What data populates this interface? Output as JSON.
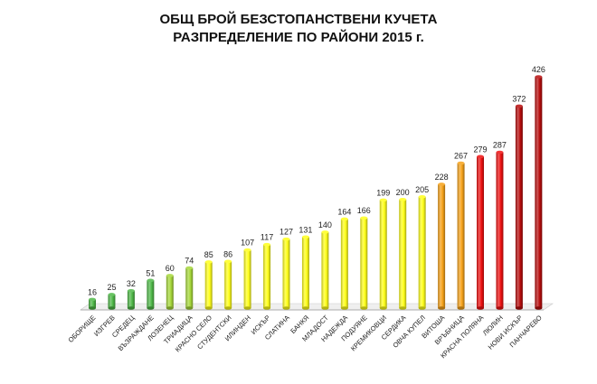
{
  "chart_data": {
    "type": "bar",
    "title": [
      "ОБЩ БРОЙ БЕЗСТОПАНСТВЕНИ  КУЧЕТА",
      "РАЗПРЕДЕЛЕНИЕ  ПО РАЙОНИ 2015 г."
    ],
    "xlabel": "",
    "ylabel": "",
    "ylim": [
      0,
      430
    ],
    "grid": false,
    "legend": "none",
    "categories": [
      "ОБОРИЩЕ",
      "ИЗГРЕВ",
      "СРЕДЕЦ",
      "ВЪЗРАЖДАНЕ",
      "ЛОЗЕНЕЦ",
      "ТРИАДИЦА",
      "КРАСНО СЕЛО",
      "СТУДЕНТСКИ",
      "ИЛИНДЕН",
      "ИСКЪР",
      "СЛАТИНА",
      "БАНКЯ",
      "МЛАДОСТ",
      "НАДЕЖДА",
      "ПОДУЯНЕ",
      "КРЕМИКОВЦИ",
      "СЕРДИКА",
      "ОВЧА КУПЕЛ",
      "ВИТОША",
      "ВРЪБНИЦА",
      "КРАСНА ПОЛЯНА",
      "ЛЮЛИН",
      "НОВИ ИСКЪР",
      "ПАНЧАРЕВО"
    ],
    "values": [
      16,
      25,
      32,
      51,
      60,
      74,
      85,
      86,
      107,
      117,
      127,
      131,
      140,
      164,
      166,
      199,
      200,
      205,
      228,
      267,
      279,
      287,
      372,
      426
    ],
    "colors": [
      "#4fb848",
      "#4fb848",
      "#4fb848",
      "#4fb848",
      "#a7d83a",
      "#a7d83a",
      "#ffff1a",
      "#ffff1a",
      "#ffff1a",
      "#ffff1a",
      "#ffff1a",
      "#ffff1a",
      "#ffff1a",
      "#ffff1a",
      "#ffff1a",
      "#ffff1a",
      "#ffff1a",
      "#ffff1a",
      "#f6a21a",
      "#f6a21a",
      "#ee1111",
      "#ee1111",
      "#b80d0d",
      "#b80d0d"
    ]
  }
}
